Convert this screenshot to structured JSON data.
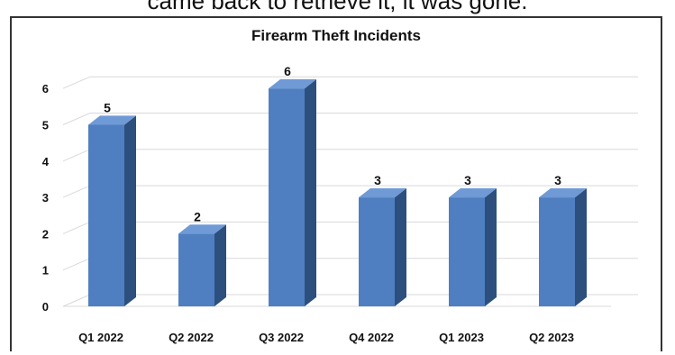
{
  "top_caption": "came back to retrieve it, it was gone.",
  "chart_data": {
    "type": "bar",
    "title": "Firearm  Theft Incidents",
    "categories": [
      "Q1 2022",
      "Q2 2022",
      "Q3 2022",
      "Q4 2022",
      "Q1 2023",
      "Q2 2023"
    ],
    "values": [
      5,
      2,
      6,
      3,
      3,
      3
    ],
    "data_labels": [
      "5",
      "2",
      "6",
      "3",
      "3",
      "3"
    ],
    "y_ticks": [
      "0",
      "1",
      "2",
      "3",
      "4",
      "5",
      "6"
    ],
    "ylim": [
      0,
      6.5
    ],
    "xlabel": "",
    "ylabel": "",
    "grid": true,
    "legend": "none",
    "style": "3d-column",
    "colors": {
      "bar_front": "#4f7fc0",
      "bar_side": "#2c4f7e",
      "bar_top": "#6f9ad6",
      "grid": "#d9d9d9"
    }
  }
}
